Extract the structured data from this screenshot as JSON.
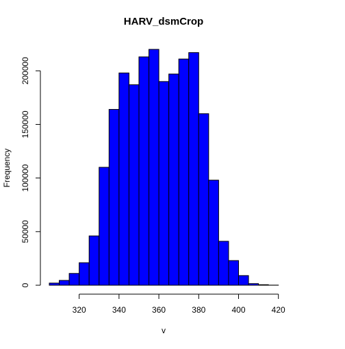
{
  "chart_data": {
    "type": "bar",
    "title": "HARV_dsmCrop",
    "xlabel": "v",
    "ylabel": "Frequency",
    "bar_color": "#0000ff",
    "edge_color": "#000000",
    "bin_width": 5,
    "bin_starts": [
      305,
      310,
      315,
      320,
      325,
      330,
      335,
      340,
      345,
      350,
      355,
      360,
      365,
      370,
      375,
      380,
      385,
      390,
      395,
      400,
      405,
      410,
      415
    ],
    "values": [
      2000,
      4500,
      11000,
      21000,
      46000,
      110000,
      164000,
      198000,
      187000,
      213000,
      220000,
      190000,
      197000,
      211000,
      217000,
      160000,
      98000,
      41000,
      23000,
      9000,
      1500,
      500,
      100
    ],
    "xlim": [
      305,
      420
    ],
    "ylim": [
      0,
      220000
    ],
    "x_ticks": [
      320,
      340,
      360,
      380,
      400,
      420
    ],
    "y_ticks": [
      0,
      50000,
      100000,
      150000,
      200000
    ],
    "x_tick_labels": [
      "320",
      "340",
      "360",
      "380",
      "400",
      "420"
    ],
    "y_tick_labels": [
      "0",
      "50000",
      "100000",
      "150000",
      "200000"
    ],
    "grid": false,
    "legend": false
  }
}
